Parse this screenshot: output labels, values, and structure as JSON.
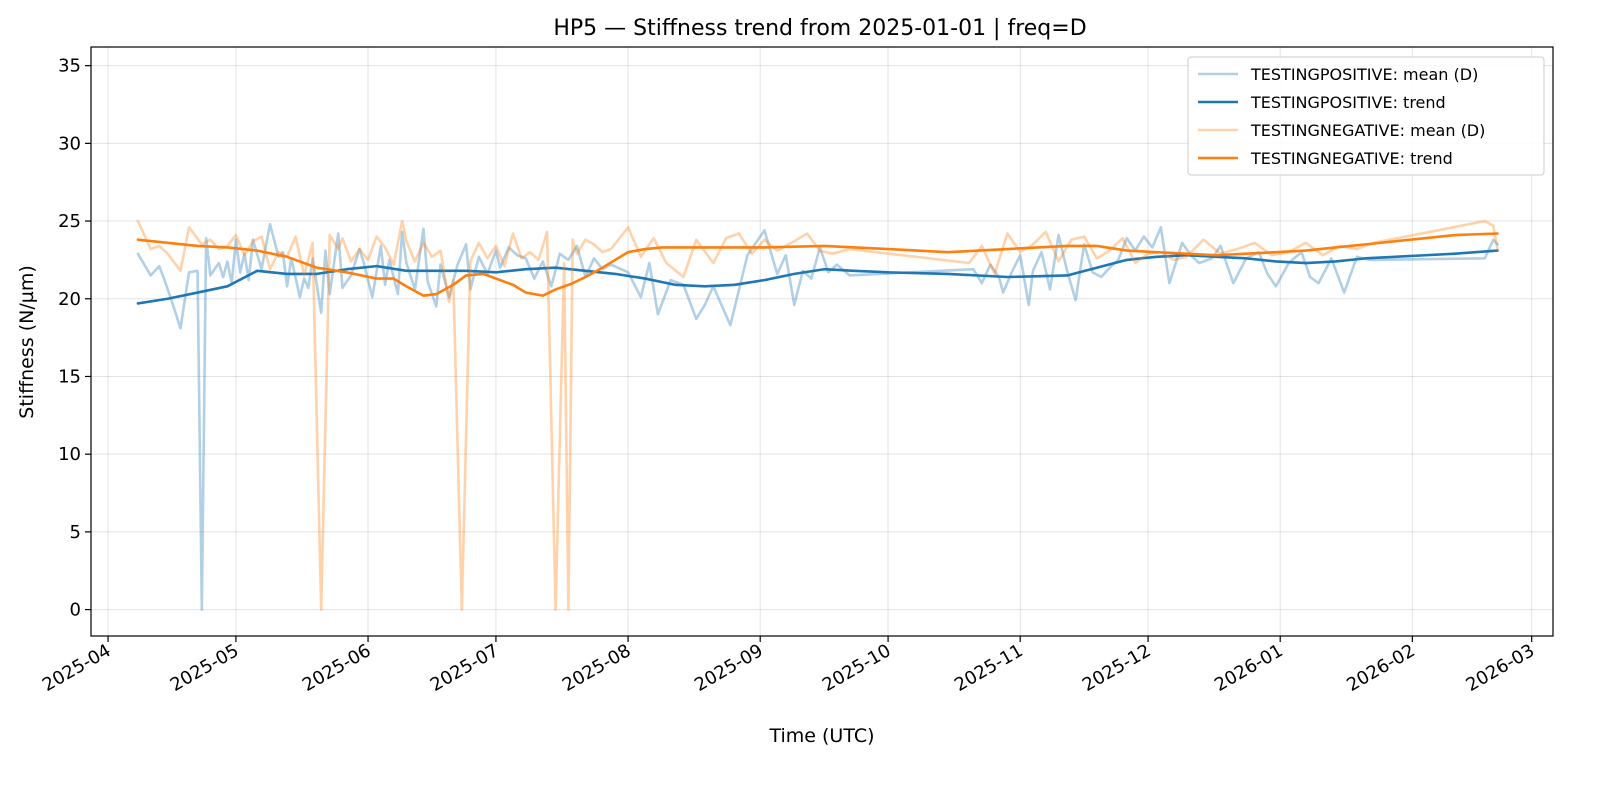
{
  "chart_data": {
    "type": "line",
    "title": "HP5 — Stiffness trend from 2025-01-01 | freq=D",
    "xlabel": "Time (UTC)",
    "ylabel": "Stiffness (N/µm)",
    "ylim": [
      -1.7,
      36.2
    ],
    "y_ticks": [
      0,
      5,
      10,
      15,
      20,
      25,
      30,
      35
    ],
    "y_tick_labels": [
      "0",
      "5",
      "10",
      "15",
      "20",
      "25",
      "30",
      "35"
    ],
    "xlim": [
      "2025-03-28",
      "2026-03-06"
    ],
    "x_ticks": [
      "2025-04-01",
      "2025-05-01",
      "2025-06-01",
      "2025-07-01",
      "2025-08-01",
      "2025-09-01",
      "2025-10-01",
      "2025-11-01",
      "2025-12-01",
      "2026-01-01",
      "2026-02-01",
      "2026-03-01"
    ],
    "x_tick_labels": [
      "2025-04",
      "2025-05",
      "2025-06",
      "2025-07",
      "2025-08",
      "2025-09",
      "2025-10",
      "2025-11",
      "2025-12",
      "2026-01",
      "2026-02",
      "2026-03"
    ],
    "grid": true,
    "legend_position": "top-right",
    "series": [
      {
        "name": "TESTINGPOSITIVE: mean (D)",
        "color": "#1f77b4",
        "opacity": 0.35,
        "x": [
          "2025-04-08",
          "2025-04-11",
          "2025-04-13",
          "2025-04-14",
          "2025-04-16",
          "2025-04-18",
          "2025-04-20",
          "2025-04-22",
          "2025-04-23",
          "2025-04-24",
          "2025-04-25",
          "2025-04-27",
          "2025-04-28",
          "2025-04-29",
          "2025-04-30",
          "2025-05-01",
          "2025-05-02",
          "2025-05-03",
          "2025-05-04",
          "2025-05-05",
          "2025-05-07",
          "2025-05-09",
          "2025-05-11",
          "2025-05-12",
          "2025-05-13",
          "2025-05-14",
          "2025-05-16",
          "2025-05-17",
          "2025-05-18",
          "2025-05-19",
          "2025-05-21",
          "2025-05-22",
          "2025-05-23",
          "2025-05-25",
          "2025-05-26",
          "2025-05-28",
          "2025-05-30",
          "2025-05-31",
          "2025-06-02",
          "2025-06-04",
          "2025-06-05",
          "2025-06-06",
          "2025-06-08",
          "2025-06-09",
          "2025-06-10",
          "2025-06-12",
          "2025-06-14",
          "2025-06-15",
          "2025-06-17",
          "2025-06-18",
          "2025-06-20",
          "2025-06-22",
          "2025-06-24",
          "2025-06-25",
          "2025-06-27",
          "2025-06-29",
          "2025-07-01",
          "2025-07-02",
          "2025-07-04",
          "2025-07-06",
          "2025-07-08",
          "2025-07-10",
          "2025-07-12",
          "2025-07-14",
          "2025-07-16",
          "2025-07-18",
          "2025-07-20",
          "2025-07-22",
          "2025-07-24",
          "2025-07-26",
          "2025-07-28",
          "2025-08-01",
          "2025-08-04",
          "2025-08-06",
          "2025-08-08",
          "2025-08-11",
          "2025-08-14",
          "2025-08-17",
          "2025-08-19",
          "2025-08-21",
          "2025-08-25",
          "2025-08-29",
          "2025-09-02",
          "2025-09-05",
          "2025-09-07",
          "2025-09-09",
          "2025-09-11",
          "2025-09-13",
          "2025-09-15",
          "2025-09-17",
          "2025-09-19",
          "2025-09-22",
          "2025-10-21",
          "2025-10-23",
          "2025-10-25",
          "2025-10-27",
          "2025-10-28",
          "2025-10-30",
          "2025-11-01",
          "2025-11-03",
          "2025-11-04",
          "2025-11-06",
          "2025-11-08",
          "2025-11-10",
          "2025-11-12",
          "2025-11-14",
          "2025-11-16",
          "2025-11-18",
          "2025-11-20",
          "2025-11-22",
          "2025-11-24",
          "2025-11-26",
          "2025-11-28",
          "2025-11-30",
          "2025-12-02",
          "2025-12-04",
          "2025-12-06",
          "2025-12-09",
          "2025-12-11",
          "2025-12-13",
          "2025-12-16",
          "2025-12-18",
          "2025-12-21",
          "2025-12-24",
          "2025-12-27",
          "2025-12-29",
          "2025-12-31",
          "2026-01-03",
          "2026-01-06",
          "2026-01-08",
          "2026-01-10",
          "2026-01-13",
          "2026-01-16",
          "2026-01-19",
          "2026-01-22",
          "2026-02-18",
          "2026-02-20",
          "2026-02-21"
        ],
        "y": [
          22.9,
          21.5,
          22.1,
          21.4,
          19.8,
          18.1,
          21.7,
          21.8,
          0.0,
          23.9,
          21.5,
          22.3,
          21.4,
          22.4,
          21.0,
          23.8,
          21.7,
          22.9,
          21.2,
          23.8,
          21.9,
          24.8,
          22.7,
          23.0,
          20.8,
          22.6,
          20.1,
          21.3,
          20.7,
          22.6,
          19.1,
          23.1,
          20.3,
          24.2,
          20.7,
          21.5,
          23.2,
          22.3,
          20.1,
          23.4,
          20.9,
          22.5,
          20.3,
          24.3,
          22.3,
          20.6,
          24.5,
          21.1,
          19.5,
          22.2,
          20.1,
          22.2,
          23.5,
          20.6,
          22.7,
          21.6,
          23.1,
          22.0,
          23.3,
          22.8,
          22.6,
          21.3,
          22.4,
          20.8,
          22.9,
          22.5,
          23.4,
          21.4,
          22.6,
          21.9,
          22.2,
          21.7,
          20.1,
          22.3,
          19.0,
          21.2,
          20.9,
          18.7,
          19.6,
          20.8,
          18.3,
          22.8,
          24.4,
          21.6,
          22.8,
          19.6,
          21.8,
          21.3,
          23.3,
          21.7,
          22.2,
          21.5,
          21.9,
          21.0,
          22.2,
          21.4,
          20.4,
          21.7,
          22.8,
          19.6,
          21.8,
          23.0,
          20.6,
          24.1,
          21.8,
          19.9,
          23.5,
          21.7,
          21.4,
          22.0,
          22.5,
          23.9,
          23.1,
          24.0,
          23.3,
          24.6,
          21.0,
          23.6,
          22.8,
          22.3,
          22.6,
          23.4,
          21.0,
          22.6,
          23.0,
          21.6,
          20.8,
          22.3,
          23.0,
          21.4,
          21.0,
          22.6,
          20.4,
          22.7,
          22.5,
          22.6,
          23.8,
          23.5
        ]
      },
      {
        "name": "TESTINGPOSITIVE: trend",
        "color": "#1f77b4",
        "opacity": 1,
        "x": [
          "2025-04-08",
          "2025-04-15",
          "2025-04-22",
          "2025-04-29",
          "2025-05-06",
          "2025-05-13",
          "2025-05-20",
          "2025-05-27",
          "2025-06-03",
          "2025-06-10",
          "2025-06-17",
          "2025-06-24",
          "2025-07-01",
          "2025-07-08",
          "2025-07-15",
          "2025-07-22",
          "2025-07-29",
          "2025-08-05",
          "2025-08-12",
          "2025-08-19",
          "2025-08-26",
          "2025-09-02",
          "2025-09-09",
          "2025-09-16",
          "2025-09-23",
          "2025-10-01",
          "2025-10-15",
          "2025-10-29",
          "2025-11-12",
          "2025-11-26",
          "2025-12-03",
          "2025-12-10",
          "2025-12-17",
          "2025-12-24",
          "2025-12-31",
          "2026-01-07",
          "2026-01-14",
          "2026-01-21",
          "2026-01-28",
          "2026-02-04",
          "2026-02-11",
          "2026-02-21"
        ],
        "y": [
          19.7,
          20.0,
          20.4,
          20.8,
          21.8,
          21.6,
          21.6,
          21.9,
          22.1,
          21.8,
          21.8,
          21.8,
          21.7,
          21.9,
          22.0,
          21.8,
          21.6,
          21.3,
          20.9,
          20.8,
          20.9,
          21.2,
          21.6,
          21.9,
          21.8,
          21.7,
          21.6,
          21.4,
          21.5,
          22.5,
          22.7,
          22.8,
          22.7,
          22.6,
          22.4,
          22.3,
          22.4,
          22.6,
          22.7,
          22.8,
          22.9,
          23.1
        ]
      },
      {
        "name": "TESTINGNEGATIVE: mean (D)",
        "color": "#ff7f0e",
        "opacity": 0.35,
        "x": [
          "2025-04-08",
          "2025-04-11",
          "2025-04-13",
          "2025-04-15",
          "2025-04-18",
          "2025-04-20",
          "2025-04-23",
          "2025-04-25",
          "2025-04-27",
          "2025-04-29",
          "2025-05-01",
          "2025-05-03",
          "2025-05-05",
          "2025-05-07",
          "2025-05-09",
          "2025-05-11",
          "2025-05-13",
          "2025-05-15",
          "2025-05-17",
          "2025-05-19",
          "2025-05-21",
          "2025-05-23",
          "2025-05-25",
          "2025-05-26",
          "2025-05-28",
          "2025-05-30",
          "2025-06-01",
          "2025-06-03",
          "2025-06-05",
          "2025-06-07",
          "2025-06-09",
          "2025-06-10",
          "2025-06-12",
          "2025-06-14",
          "2025-06-16",
          "2025-06-18",
          "2025-06-20",
          "2025-06-21",
          "2025-06-23",
          "2025-06-25",
          "2025-06-27",
          "2025-06-29",
          "2025-07-01",
          "2025-07-03",
          "2025-07-05",
          "2025-07-07",
          "2025-07-09",
          "2025-07-11",
          "2025-07-13",
          "2025-07-15",
          "2025-07-17",
          "2025-07-18",
          "2025-07-19",
          "2025-07-20",
          "2025-07-22",
          "2025-07-24",
          "2025-07-26",
          "2025-07-28",
          "2025-08-01",
          "2025-08-04",
          "2025-08-07",
          "2025-08-10",
          "2025-08-14",
          "2025-08-17",
          "2025-08-21",
          "2025-08-24",
          "2025-08-27",
          "2025-08-30",
          "2025-09-02",
          "2025-09-05",
          "2025-09-09",
          "2025-09-12",
          "2025-09-15",
          "2025-09-18",
          "2025-09-22",
          "2025-10-20",
          "2025-10-23",
          "2025-10-26",
          "2025-10-29",
          "2025-11-01",
          "2025-11-04",
          "2025-11-07",
          "2025-11-10",
          "2025-11-13",
          "2025-11-16",
          "2025-11-19",
          "2025-11-22",
          "2025-11-25",
          "2025-11-28",
          "2025-12-01",
          "2025-12-04",
          "2025-12-07",
          "2025-12-10",
          "2025-12-14",
          "2025-12-18",
          "2025-12-22",
          "2025-12-26",
          "2025-12-30",
          "2026-01-03",
          "2026-01-07",
          "2026-01-11",
          "2026-01-15",
          "2026-01-19",
          "2026-01-23",
          "2026-02-18",
          "2026-02-20",
          "2026-02-21"
        ],
        "y": [
          25.0,
          23.2,
          23.4,
          22.9,
          21.8,
          24.6,
          23.5,
          23.8,
          23.2,
          23.4,
          24.1,
          22.8,
          23.7,
          24.0,
          21.9,
          23.0,
          22.7,
          24.0,
          21.5,
          23.6,
          0.0,
          24.1,
          23.2,
          23.9,
          22.4,
          23.2,
          22.5,
          24.0,
          23.3,
          22.2,
          25.0,
          23.7,
          22.4,
          23.6,
          22.7,
          23.1,
          19.8,
          21.2,
          0.0,
          22.4,
          23.6,
          22.6,
          23.4,
          22.1,
          24.2,
          22.6,
          23.0,
          22.5,
          24.3,
          0.0,
          22.3,
          0.0,
          23.8,
          22.9,
          23.8,
          23.5,
          23.0,
          23.2,
          24.6,
          22.7,
          23.9,
          22.3,
          21.4,
          23.8,
          22.3,
          23.9,
          24.2,
          22.9,
          23.8,
          23.1,
          23.7,
          24.2,
          23.1,
          22.9,
          23.2,
          22.3,
          23.4,
          21.6,
          24.2,
          23.0,
          23.5,
          24.3,
          22.4,
          23.8,
          24.0,
          22.6,
          23.1,
          23.9,
          22.3,
          22.9,
          23.0,
          22.5,
          22.7,
          23.8,
          22.9,
          23.2,
          23.6,
          22.8,
          23.0,
          23.6,
          22.8,
          23.4,
          23.2,
          23.6,
          25.0,
          24.7,
          23.1
        ]
      },
      {
        "name": "TESTINGNEGATIVE: trend",
        "color": "#ff7f0e",
        "opacity": 1,
        "x": [
          "2025-04-08",
          "2025-04-15",
          "2025-04-22",
          "2025-04-29",
          "2025-05-06",
          "2025-05-13",
          "2025-05-20",
          "2025-05-27",
          "2025-06-03",
          "2025-06-07",
          "2025-06-10",
          "2025-06-14",
          "2025-06-17",
          "2025-06-21",
          "2025-06-24",
          "2025-06-28",
          "2025-07-01",
          "2025-07-05",
          "2025-07-08",
          "2025-07-12",
          "2025-07-15",
          "2025-07-19",
          "2025-07-22",
          "2025-07-26",
          "2025-07-29",
          "2025-08-01",
          "2025-08-05",
          "2025-08-09",
          "2025-08-15",
          "2025-08-22",
          "2025-09-02",
          "2025-09-16",
          "2025-10-01",
          "2025-10-15",
          "2025-10-29",
          "2025-11-12",
          "2025-11-19",
          "2025-11-26",
          "2025-12-03",
          "2025-12-10",
          "2025-12-17",
          "2025-12-24",
          "2025-12-31",
          "2026-01-07",
          "2026-01-14",
          "2026-01-21",
          "2026-01-28",
          "2026-02-04",
          "2026-02-11",
          "2026-02-21"
        ],
        "y": [
          23.8,
          23.6,
          23.4,
          23.3,
          23.1,
          22.7,
          22.0,
          21.7,
          21.3,
          21.3,
          20.8,
          20.2,
          20.3,
          20.9,
          21.5,
          21.6,
          21.3,
          20.9,
          20.4,
          20.2,
          20.6,
          21.0,
          21.4,
          22.0,
          22.5,
          23.0,
          23.2,
          23.3,
          23.3,
          23.3,
          23.3,
          23.4,
          23.2,
          23.0,
          23.2,
          23.4,
          23.4,
          23.1,
          23.0,
          22.9,
          22.8,
          22.9,
          23.0,
          23.1,
          23.3,
          23.5,
          23.7,
          23.9,
          24.1,
          24.2
        ]
      }
    ]
  }
}
